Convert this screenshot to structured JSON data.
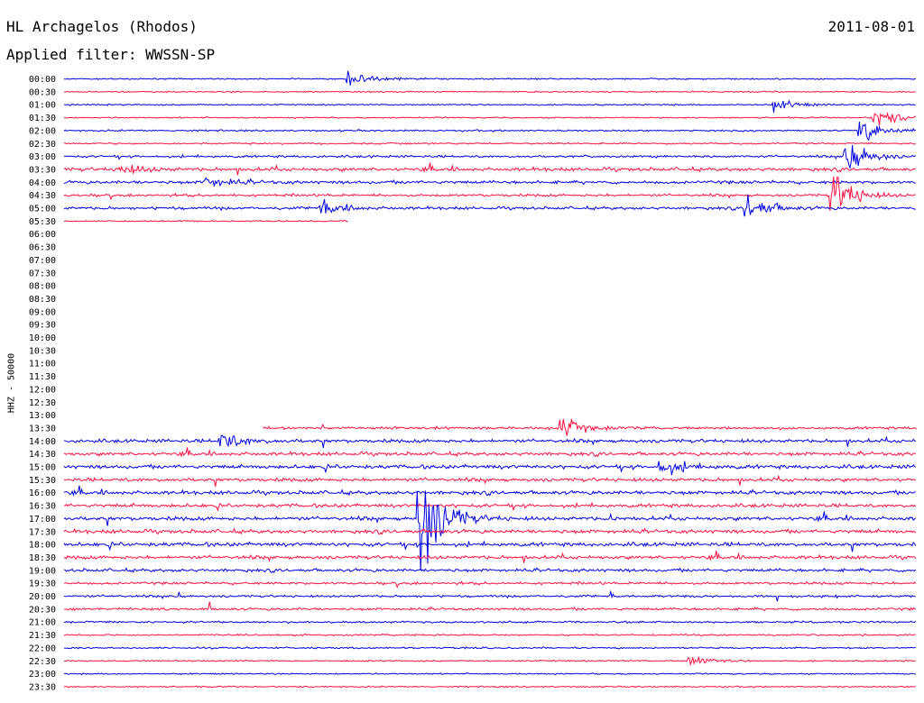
{
  "header": {
    "station": "HL Archagelos (Rhodos)",
    "date": "2011-08-01",
    "filter": "Applied filter: WWSSN-SP"
  },
  "colors": {
    "even_hour": "#0000e0",
    "odd_hour": "#ff1040"
  },
  "chart_data": {
    "type": "line",
    "title": "HL Archagelos (Rhodos)",
    "ylabel": "HHZ - 50000",
    "xlabel": "",
    "rows": [
      "00:00",
      "00:30",
      "01:00",
      "01:30",
      "02:00",
      "02:30",
      "03:00",
      "03:30",
      "04:00",
      "04:30",
      "05:00",
      "05:30",
      "06:00",
      "06:30",
      "07:00",
      "07:30",
      "08:00",
      "08:30",
      "09:00",
      "09:30",
      "10:00",
      "10:30",
      "11:00",
      "11:30",
      "12:00",
      "12:30",
      "13:00",
      "13:30",
      "14:00",
      "14:30",
      "15:00",
      "15:30",
      "16:00",
      "16:30",
      "17:00",
      "17:30",
      "18:00",
      "18:30",
      "19:00",
      "19:30",
      "20:00",
      "20:30",
      "21:00",
      "21:30",
      "22:00",
      "22:30",
      "23:00",
      "23:30"
    ],
    "row_minutes": 30,
    "data_gap": {
      "from": "05:40",
      "to": "13:37"
    },
    "activity": [
      0.2,
      0.2,
      0.2,
      0.2,
      0.3,
      0.3,
      0.5,
      0.9,
      0.8,
      0.6,
      0.7,
      0,
      0,
      0,
      0,
      0,
      0,
      0,
      0,
      0,
      0,
      0,
      0,
      0,
      0,
      0,
      0,
      0.6,
      0.9,
      0.9,
      1.0,
      0.9,
      1.0,
      0.9,
      1.0,
      1.0,
      1.0,
      0.9,
      0.8,
      0.6,
      0.5,
      0.6,
      0.4,
      0.3,
      0.3,
      0.2,
      0.2,
      0.2
    ],
    "events": [
      {
        "row": "00:00",
        "minute": 10,
        "amplitude": 14
      },
      {
        "row": "01:00",
        "minute": 25,
        "amplitude": 10
      },
      {
        "row": "02:00",
        "minute": 28,
        "amplitude": 22
      },
      {
        "row": "01:30",
        "minute": 28.5,
        "amplitude": 20
      },
      {
        "row": "03:00",
        "minute": 27.5,
        "amplitude": 30
      },
      {
        "row": "04:30",
        "minute": 27,
        "amplitude": 45
      },
      {
        "row": "05:00",
        "minute": 24,
        "amplitude": 25
      },
      {
        "row": "03:30",
        "minute": 2,
        "amplitude": 10
      },
      {
        "row": "04:00",
        "minute": 5,
        "amplitude": 12
      },
      {
        "row": "05:00",
        "minute": 9,
        "amplitude": 12
      },
      {
        "row": "13:30",
        "minute": 17.5,
        "amplitude": 18
      },
      {
        "row": "14:00",
        "minute": 5.5,
        "amplitude": 16
      },
      {
        "row": "15:00",
        "minute": 21,
        "amplitude": 14
      },
      {
        "row": "17:00",
        "minute": 12.5,
        "amplitude": 110
      },
      {
        "row": "22:30",
        "minute": 22,
        "amplitude": 8
      }
    ]
  }
}
